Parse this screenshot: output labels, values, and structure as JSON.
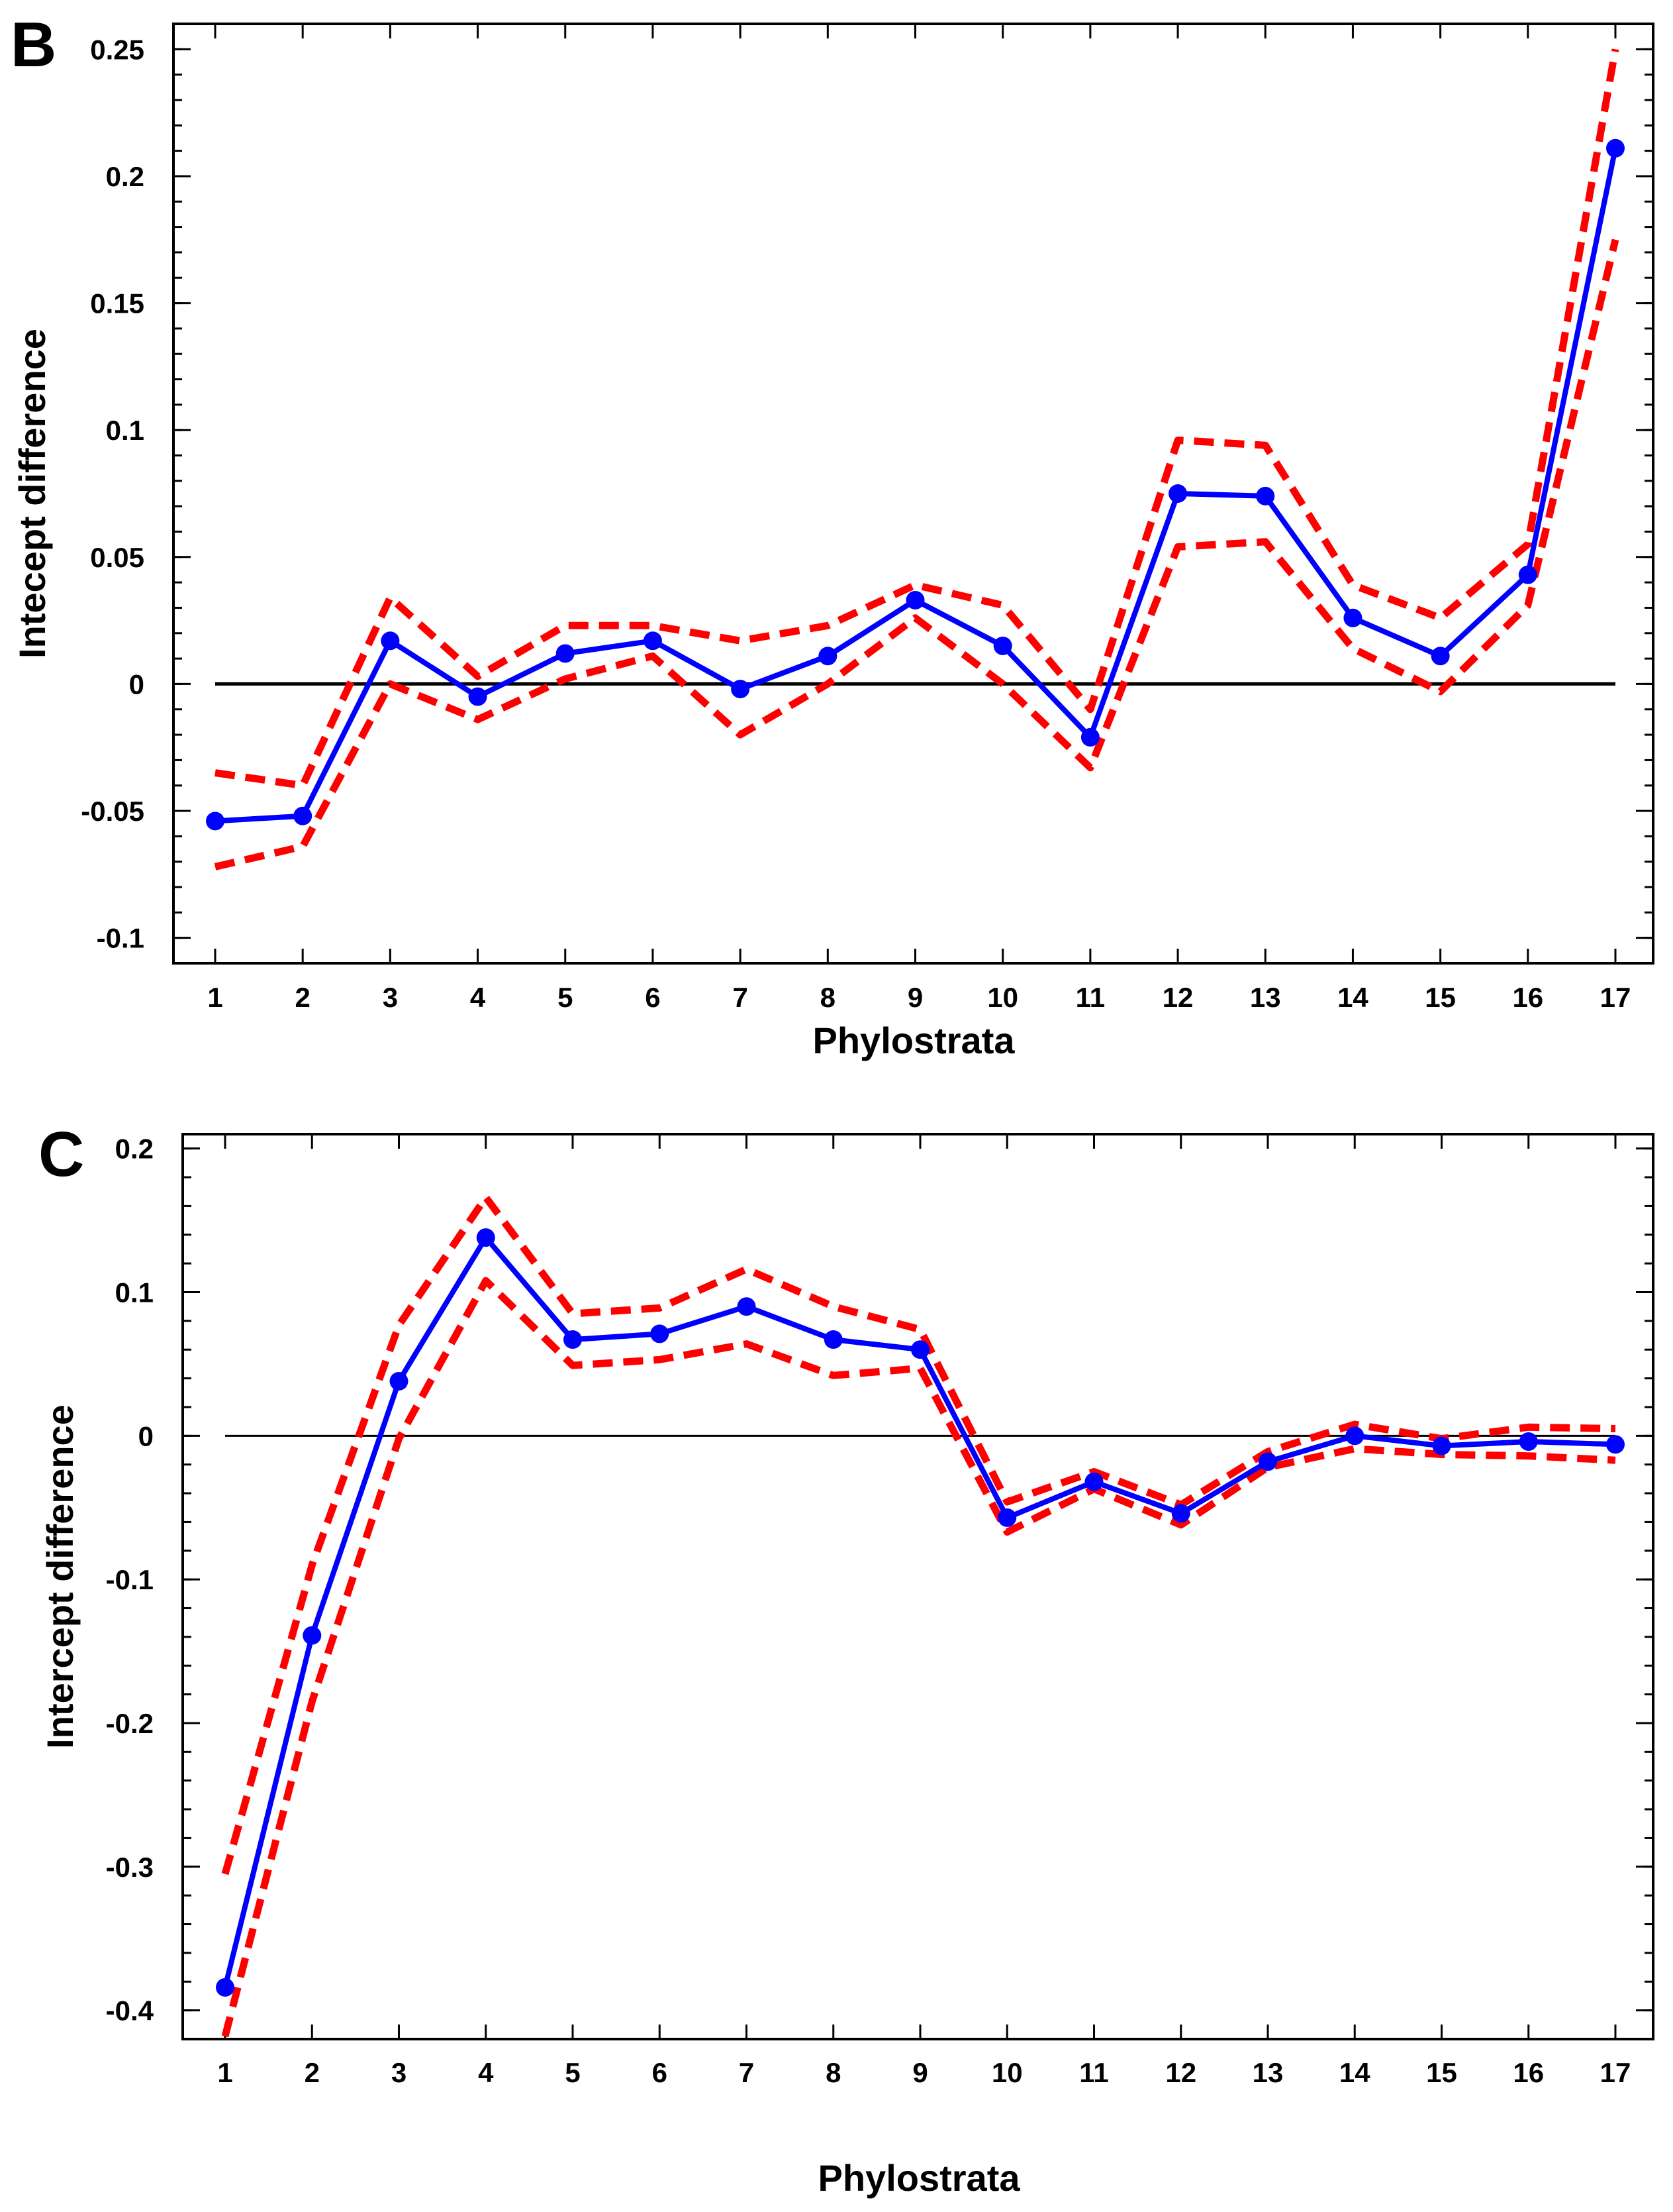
{
  "chart_data": [
    {
      "panel": "B",
      "type": "line",
      "xlabel": "Phylostrata",
      "ylabel": "Intecept difference",
      "x": [
        1,
        2,
        3,
        4,
        5,
        6,
        7,
        8,
        9,
        10,
        11,
        12,
        13,
        14,
        15,
        16,
        17
      ],
      "xtick_labels": [
        "1",
        "2",
        "3",
        "4",
        "5",
        "6",
        "7",
        "8",
        "9",
        "10",
        "11",
        "12",
        "13",
        "14",
        "15",
        "16",
        "17"
      ],
      "ylim": [
        -0.11,
        0.26
      ],
      "yticks": [
        -0.1,
        -0.05,
        0,
        0.05,
        0.1,
        0.15,
        0.2,
        0.25
      ],
      "ytick_labels": [
        "-0.1",
        "-0.05",
        "0",
        "0.05",
        "0.1",
        "0.15",
        "0.2",
        "0.25"
      ],
      "reference_line": 0,
      "series": [
        {
          "name": "estimate",
          "color": "#0000ff",
          "style": "solid-markers",
          "values": [
            -0.054,
            -0.052,
            0.017,
            -0.005,
            0.012,
            0.017,
            -0.002,
            0.011,
            0.033,
            0.015,
            -0.021,
            0.075,
            0.074,
            0.026,
            0.011,
            0.043,
            0.211
          ]
        },
        {
          "name": "upper bound",
          "color": "#ff0000",
          "style": "dashed",
          "values": [
            -0.035,
            -0.04,
            0.034,
            0.003,
            0.023,
            0.023,
            0.017,
            0.023,
            0.039,
            0.031,
            -0.01,
            0.096,
            0.094,
            0.039,
            0.026,
            0.055,
            0.25
          ]
        },
        {
          "name": "lower bound",
          "color": "#ff0000",
          "style": "dashed",
          "values": [
            -0.072,
            -0.064,
            0.0,
            -0.014,
            0.002,
            0.011,
            -0.02,
            0.0,
            0.026,
            0.0,
            -0.033,
            0.054,
            0.056,
            0.014,
            -0.003,
            0.031,
            0.175
          ]
        }
      ]
    },
    {
      "panel": "C",
      "type": "line",
      "xlabel": "Phylostrata",
      "ylabel": "Intercept difference",
      "x": [
        1,
        2,
        3,
        4,
        5,
        6,
        7,
        8,
        9,
        10,
        11,
        12,
        13,
        14,
        15,
        16,
        17
      ],
      "xtick_labels": [
        "1",
        "2",
        "3",
        "4",
        "5",
        "6",
        "7",
        "8",
        "9",
        "10",
        "11",
        "12",
        "13",
        "14",
        "15",
        "16",
        "17"
      ],
      "ylim": [
        -0.42,
        0.21
      ],
      "yticks": [
        -0.4,
        -0.3,
        -0.2,
        -0.1,
        0,
        0.1,
        0.2
      ],
      "ytick_labels": [
        "-0.4",
        "-0.3",
        "-0.2",
        "-0.1",
        "0",
        "0.1",
        "0.2"
      ],
      "reference_line": 0,
      "series": [
        {
          "name": "estimate",
          "color": "#0000ff",
          "style": "solid-markers",
          "values": [
            -0.384,
            -0.139,
            0.038,
            0.138,
            0.067,
            0.071,
            0.09,
            0.067,
            0.06,
            -0.057,
            -0.032,
            -0.054,
            -0.018,
            0.0,
            -0.007,
            -0.004,
            -0.006
          ]
        },
        {
          "name": "upper bound",
          "color": "#ff0000",
          "style": "dashed",
          "values": [
            -0.305,
            -0.09,
            0.077,
            0.166,
            0.085,
            0.089,
            0.116,
            0.09,
            0.074,
            -0.046,
            -0.025,
            -0.048,
            -0.011,
            0.008,
            -0.002,
            0.006,
            0.005
          ]
        },
        {
          "name": "lower bound",
          "color": "#ff0000",
          "style": "dashed",
          "values": [
            -0.418,
            -0.185,
            -0.002,
            0.108,
            0.049,
            0.053,
            0.064,
            0.042,
            0.047,
            -0.067,
            -0.037,
            -0.062,
            -0.022,
            -0.009,
            -0.013,
            -0.014,
            -0.017
          ]
        }
      ]
    }
  ]
}
